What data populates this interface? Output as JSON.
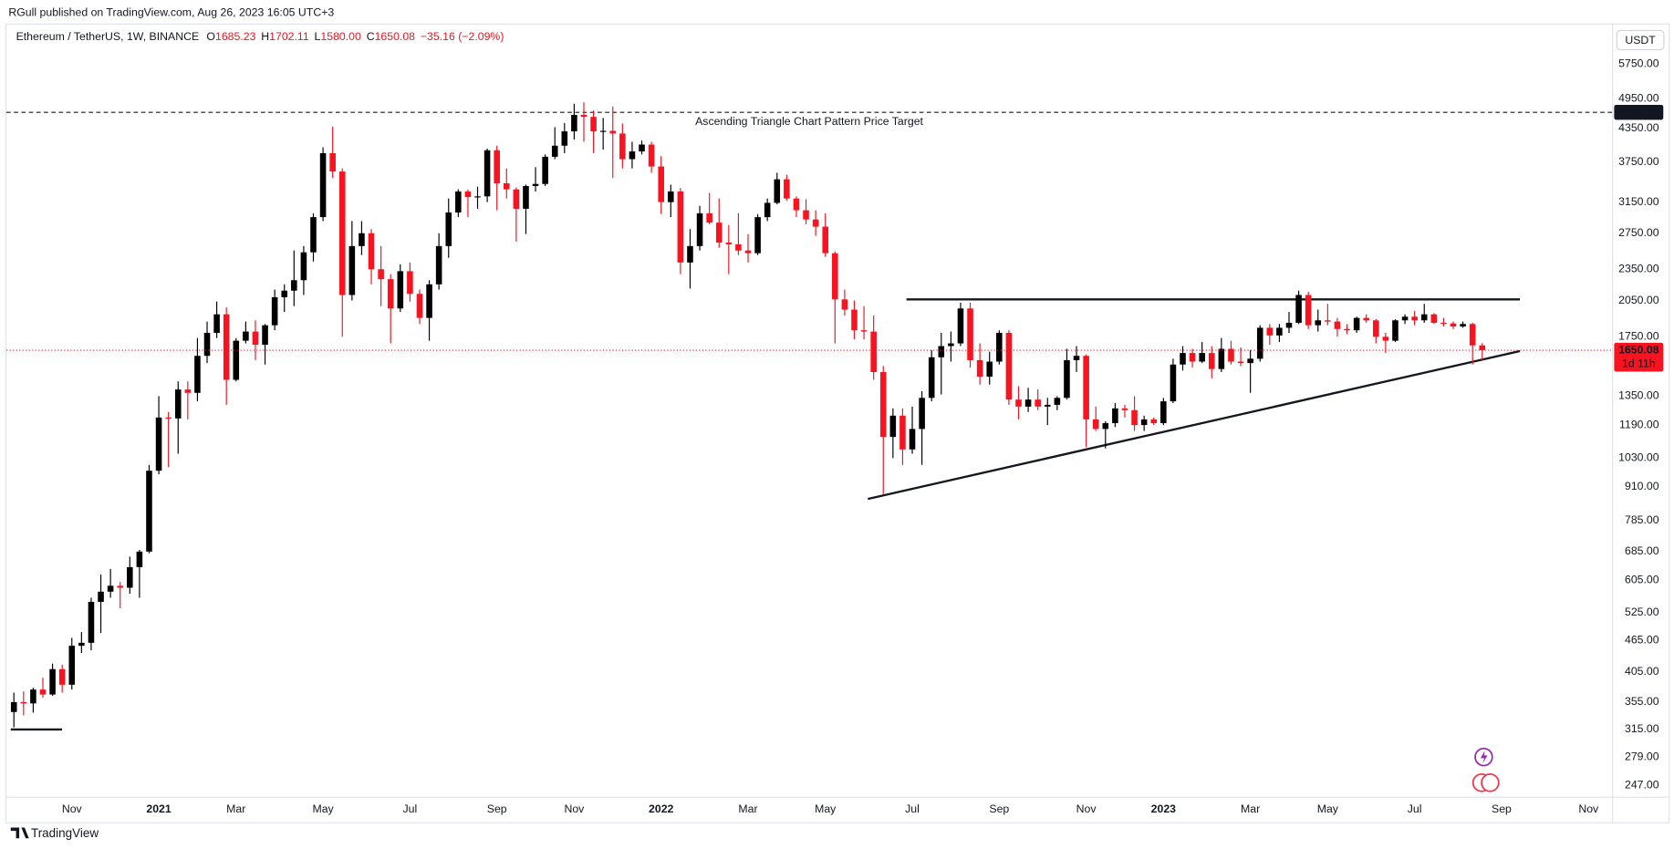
{
  "chart_data": {
    "type": "candlestick",
    "published_by": "RGull published on TradingView.com, Aug 26, 2023 16:05 UTC+3",
    "header": {
      "symbol": "Ethereum / TetherUS, 1W, BINANCE",
      "fields": [
        {
          "key": "O",
          "value": "1685.23"
        },
        {
          "key": "H",
          "value": "1702.11"
        },
        {
          "key": "L",
          "value": "1580.00"
        },
        {
          "key": "C",
          "value": "1650.08"
        }
      ],
      "change": "−35.16 (−2.09%)"
    },
    "currency": "USDT",
    "branding": "TradingView",
    "log_scale": true,
    "grid": false,
    "up_color": "#000000",
    "down_color": "#f7131f",
    "ylim": [
      235,
      6870
    ],
    "yticks": [
      {
        "value": 5750,
        "label": "5750.00"
      },
      {
        "value": 4950,
        "label": "4950.00"
      },
      {
        "value": 4350,
        "label": "4350.00"
      },
      {
        "value": 3750,
        "label": "3750.00"
      },
      {
        "value": 3150,
        "label": "3150.00"
      },
      {
        "value": 2750,
        "label": "2750.00"
      },
      {
        "value": 2350,
        "label": "2350.00"
      },
      {
        "value": 2050,
        "label": "2050.00"
      },
      {
        "value": 1750,
        "label": "1750.00"
      },
      {
        "value": 1350,
        "label": "1350.00"
      },
      {
        "value": 1190,
        "label": "1190.00"
      },
      {
        "value": 1030,
        "label": "1030.00"
      },
      {
        "value": 910,
        "label": "910.00"
      },
      {
        "value": 785,
        "label": "785.00"
      },
      {
        "value": 685,
        "label": "685.00"
      },
      {
        "value": 605,
        "label": "605.00"
      },
      {
        "value": 525,
        "label": "525.00"
      },
      {
        "value": 465,
        "label": "465.00"
      },
      {
        "value": 405,
        "label": "405.00"
      },
      {
        "value": 355,
        "label": "355.00"
      },
      {
        "value": 315,
        "label": "315.00"
      },
      {
        "value": 279,
        "label": "279.00"
      },
      {
        "value": 247,
        "label": "247.00"
      }
    ],
    "categories": [
      null,
      null,
      null,
      null,
      null,
      null,
      "Nov",
      null,
      null,
      null,
      null,
      null,
      null,
      null,
      null,
      "2021",
      null,
      null,
      null,
      null,
      null,
      null,
      null,
      "Mar",
      null,
      null,
      null,
      null,
      null,
      null,
      null,
      null,
      "May",
      null,
      null,
      null,
      null,
      null,
      null,
      null,
      null,
      "Jul",
      null,
      null,
      null,
      null,
      null,
      null,
      null,
      null,
      "Sep",
      null,
      null,
      null,
      null,
      null,
      null,
      null,
      "Nov",
      null,
      null,
      null,
      null,
      null,
      null,
      null,
      null,
      "2022",
      null,
      null,
      null,
      null,
      null,
      null,
      null,
      null,
      "Mar",
      null,
      null,
      null,
      null,
      null,
      null,
      null,
      "May",
      null,
      null,
      null,
      null,
      null,
      null,
      null,
      null,
      "Jul",
      null,
      null,
      null,
      null,
      null,
      null,
      null,
      null,
      "Sep",
      null,
      null,
      null,
      null,
      null,
      null,
      null,
      null,
      "Nov",
      null,
      null,
      null,
      null,
      null,
      null,
      null,
      "2023",
      null,
      null,
      null,
      null,
      null,
      null,
      null,
      null,
      "Mar",
      null,
      null,
      null,
      null,
      null,
      null,
      null,
      "May",
      null,
      null,
      null,
      null,
      null,
      null,
      null,
      null,
      "Jul",
      null,
      null,
      null,
      null,
      null,
      null,
      null,
      null,
      "Sep",
      null,
      null,
      null,
      null,
      null,
      null,
      null,
      null,
      "Nov"
    ],
    "open": [
      340,
      355,
      353,
      375,
      367,
      410,
      383,
      454,
      460,
      550,
      575,
      590,
      585,
      640,
      685,
      975,
      1230,
      1225,
      1390,
      1370,
      1610,
      1780,
      1930,
      1450,
      1720,
      1790,
      1690,
      1840,
      2080,
      2140,
      2240,
      2530,
      2950,
      3900,
      3600,
      2100,
      2600,
      2750,
      2350,
      2250,
      1980,
      2330,
      2110,
      1900,
      2200,
      2600,
      3010,
      3300,
      3220,
      3230,
      3950,
      3420,
      3330,
      3060,
      3380,
      3410,
      3840,
      4030,
      4290,
      4610,
      4570,
      4290,
      4300,
      4250,
      3800,
      3930,
      4050,
      3680,
      3150,
      3300,
      2420,
      2600,
      3000,
      2880,
      2640,
      2620,
      2550,
      2520,
      2950,
      3140,
      3480,
      3200,
      3040,
      2920,
      2830,
      2520,
      2060,
      1970,
      1800,
      1790,
      1500,
      1130,
      1240,
      1070,
      1170,
      1340,
      1600,
      1680,
      1700,
      1980,
      1580,
      1470,
      1570,
      1780,
      1330,
      1290,
      1330,
      1290,
      1300,
      1340,
      1580,
      1610,
      1220,
      1170,
      1200,
      1280,
      1270,
      1190,
      1220,
      1200,
      1320,
      1550,
      1630,
      1570,
      1630,
      1520,
      1660,
      1570,
      1560,
      1590,
      1820,
      1760,
      1820,
      1860,
      2100,
      1840,
      1880,
      1870,
      1810,
      1800,
      1900,
      1880,
      1750,
      1720,
      1880,
      1910,
      1880,
      1930,
      1860,
      1855,
      1830,
      1850,
      1685.23,
      null,
      null,
      null,
      null,
      null,
      null,
      null,
      null,
      null,
      null,
      null
    ],
    "high": [
      370,
      372,
      378,
      395,
      420,
      418,
      470,
      482,
      560,
      620,
      635,
      600,
      670,
      690,
      1000,
      1350,
      1260,
      1440,
      1440,
      1740,
      1870,
      2040,
      1990,
      1740,
      1870,
      1880,
      1850,
      2150,
      2200,
      2550,
      2600,
      3000,
      4000,
      4380,
      3650,
      2900,
      2900,
      2800,
      2600,
      2300,
      2400,
      2420,
      2150,
      2240,
      2750,
      3200,
      3330,
      3330,
      3370,
      3980,
      4030,
      3650,
      3360,
      3400,
      3670,
      3880,
      4370,
      4450,
      4840,
      4870,
      4700,
      4550,
      4780,
      4440,
      4100,
      4120,
      4100,
      3850,
      3400,
      3350,
      2800,
      3100,
      3280,
      3200,
      2850,
      3000,
      2740,
      2990,
      3200,
      3580,
      3550,
      3230,
      3190,
      3040,
      3000,
      2540,
      2150,
      2050,
      2000,
      1920,
      1540,
      1280,
      1280,
      1290,
      1380,
      1650,
      1780,
      1790,
      2030,
      2030,
      1700,
      1640,
      1800,
      1800,
      1410,
      1400,
      1390,
      1340,
      1350,
      1660,
      1680,
      1620,
      1290,
      1210,
      1310,
      1300,
      1350,
      1240,
      1230,
      1340,
      1590,
      1680,
      1660,
      1710,
      1680,
      1740,
      1720,
      1670,
      1650,
      1840,
      1850,
      1850,
      1950,
      2140,
      2130,
      1970,
      2020,
      1900,
      1850,
      1910,
      1930,
      1890,
      1780,
      1890,
      1930,
      1960,
      2020,
      1940,
      1900,
      1870,
      1870,
      1860,
      1702.11,
      null,
      null,
      null,
      null,
      null,
      null,
      null,
      null,
      null,
      null,
      null
    ],
    "low": [
      318,
      335,
      339,
      362,
      365,
      370,
      375,
      440,
      445,
      480,
      560,
      535,
      570,
      560,
      680,
      960,
      990,
      1050,
      1220,
      1320,
      1560,
      1740,
      1300,
      1440,
      1700,
      1580,
      1550,
      1800,
      1950,
      2000,
      2100,
      2430,
      2900,
      3500,
      1750,
      2050,
      2500,
      2200,
      2000,
      1700,
      1950,
      2040,
      1850,
      1720,
      2150,
      2470,
      2950,
      2950,
      3060,
      3150,
      3040,
      3200,
      2650,
      2740,
      3300,
      3380,
      3800,
      3900,
      4140,
      4100,
      3900,
      3960,
      3500,
      3650,
      3650,
      3880,
      3580,
      2990,
      2950,
      2300,
      2160,
      2550,
      2860,
      2580,
      2300,
      2500,
      2420,
      2500,
      2900,
      3120,
      3170,
      2950,
      2860,
      2720,
      2480,
      1700,
      1920,
      1730,
      1730,
      1450,
      880,
      1030,
      1000,
      1050,
      1000,
      1320,
      1360,
      1570,
      1680,
      1530,
      1420,
      1420,
      1550,
      1300,
      1220,
      1260,
      1270,
      1190,
      1270,
      1330,
      1500,
      1080,
      1160,
      1075,
      1180,
      1230,
      1160,
      1160,
      1190,
      1190,
      1310,
      1510,
      1530,
      1560,
      1460,
      1500,
      1550,
      1540,
      1370,
      1570,
      1690,
      1710,
      1780,
      1850,
      1810,
      1790,
      1840,
      1750,
      1770,
      1780,
      1860,
      1700,
      1630,
      1710,
      1850,
      1840,
      1860,
      1850,
      1830,
      1810,
      1820,
      1550,
      1580,
      null,
      null,
      null,
      null,
      null,
      null,
      null,
      null,
      null,
      null,
      null
    ],
    "close": [
      355,
      353,
      375,
      367,
      410,
      383,
      454,
      460,
      550,
      575,
      590,
      585,
      640,
      685,
      975,
      1230,
      1225,
      1390,
      1370,
      1610,
      1780,
      1930,
      1450,
      1720,
      1790,
      1690,
      1840,
      2080,
      2140,
      2240,
      2530,
      2950,
      3900,
      3600,
      2100,
      2600,
      2750,
      2350,
      2250,
      1980,
      2330,
      2110,
      1900,
      2200,
      2600,
      3010,
      3300,
      3220,
      3230,
      3950,
      3420,
      3330,
      3060,
      3380,
      3410,
      3840,
      4030,
      4290,
      4610,
      4570,
      4290,
      4300,
      4250,
      3800,
      3930,
      4050,
      3680,
      3150,
      3300,
      2420,
      2600,
      3000,
      2880,
      2640,
      2620,
      2550,
      2520,
      2950,
      3140,
      3480,
      3200,
      3040,
      2920,
      2830,
      2520,
      2060,
      1970,
      1800,
      1790,
      1500,
      1130,
      1240,
      1070,
      1170,
      1340,
      1600,
      1680,
      1700,
      1980,
      1580,
      1470,
      1570,
      1780,
      1330,
      1290,
      1330,
      1290,
      1300,
      1340,
      1580,
      1610,
      1220,
      1170,
      1200,
      1280,
      1270,
      1190,
      1220,
      1200,
      1320,
      1550,
      1630,
      1570,
      1630,
      1520,
      1660,
      1570,
      1560,
      1590,
      1820,
      1760,
      1820,
      1860,
      2100,
      1840,
      1880,
      1870,
      1810,
      1800,
      1900,
      1880,
      1750,
      1720,
      1880,
      1910,
      1880,
      1930,
      1860,
      1855,
      1830,
      1850,
      1685.23,
      1650.08,
      null,
      null,
      null,
      null,
      null,
      null,
      null,
      null,
      null,
      null,
      null
    ],
    "last_price": {
      "value": 1650.08,
      "label": "1650.08",
      "countdown": "1d 11h",
      "color": "#f7131f"
    },
    "target": {
      "value": 4662,
      "label": "4662.00",
      "text": "Ascending Triangle Chart Pattern Price Target"
    },
    "trendlines": [
      {
        "x": [
          92.4,
          155.9
        ],
        "y": [
          2060,
          2060
        ]
      },
      {
        "x": [
          88.4,
          155.9
        ],
        "y": [
          862,
          1644
        ]
      },
      {
        "x": [
          -0.33,
          4.98
        ],
        "y": [
          315,
          315
        ]
      }
    ]
  }
}
